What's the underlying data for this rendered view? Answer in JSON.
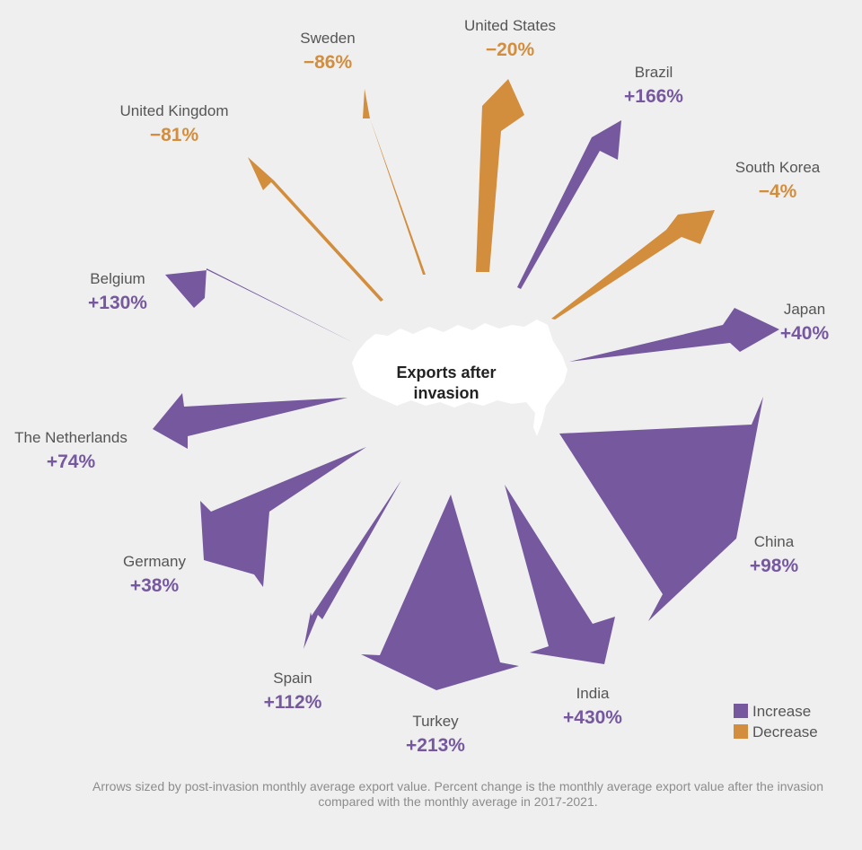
{
  "chart_data": {
    "type": "radial-arrows",
    "center_label": [
      "Exports after",
      "invasion"
    ],
    "legend": [
      {
        "key": "increase",
        "label": "Increase"
      },
      {
        "key": "decrease",
        "label": "Decrease"
      }
    ],
    "colors": {
      "increase": "#75589e",
      "decrease": "#d28d3d",
      "country_text": "#555555",
      "russia": "#ffffff"
    },
    "countries": [
      {
        "name": "United States",
        "change": "−20%",
        "value": -20,
        "direction": "decrease"
      },
      {
        "name": "Brazil",
        "change": "+166%",
        "value": 166,
        "direction": "increase"
      },
      {
        "name": "South Korea",
        "change": "−4%",
        "value": -4,
        "direction": "decrease"
      },
      {
        "name": "Japan",
        "change": "+40%",
        "value": 40,
        "direction": "increase"
      },
      {
        "name": "China",
        "change": "+98%",
        "value": 98,
        "direction": "increase"
      },
      {
        "name": "India",
        "change": "+430%",
        "value": 430,
        "direction": "increase"
      },
      {
        "name": "Turkey",
        "change": "+213%",
        "value": 213,
        "direction": "increase"
      },
      {
        "name": "Spain",
        "change": "+112%",
        "value": 112,
        "direction": "increase"
      },
      {
        "name": "Germany",
        "change": "+38%",
        "value": 38,
        "direction": "increase"
      },
      {
        "name": "The Netherlands",
        "change": "+74%",
        "value": 74,
        "direction": "increase"
      },
      {
        "name": "Belgium",
        "change": "+130%",
        "value": 130,
        "direction": "increase"
      },
      {
        "name": "United Kingdom",
        "change": "−81%",
        "value": -81,
        "direction": "decrease"
      },
      {
        "name": "Sweden",
        "change": "−86%",
        "value": -86,
        "direction": "decrease"
      }
    ],
    "footnote": "Arrows sized by post-invasion monthly average export value. Percent change is the monthly average export value after the invasion compared with the monthly average in 2017-2021."
  }
}
